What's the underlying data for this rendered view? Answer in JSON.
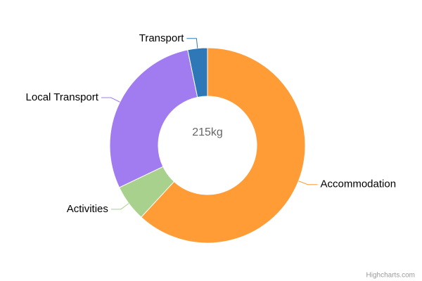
{
  "chart_data": {
    "type": "donut",
    "center_label": "215kg",
    "categories": [
      "Accommodation",
      "Activities",
      "Local Transport",
      "Transport"
    ],
    "values": [
      133,
      13,
      62,
      7
    ],
    "colors": [
      "#ff9c36",
      "#a9d18e",
      "#a17cf0",
      "#2f78b8"
    ],
    "credits": "Highcharts.com"
  }
}
